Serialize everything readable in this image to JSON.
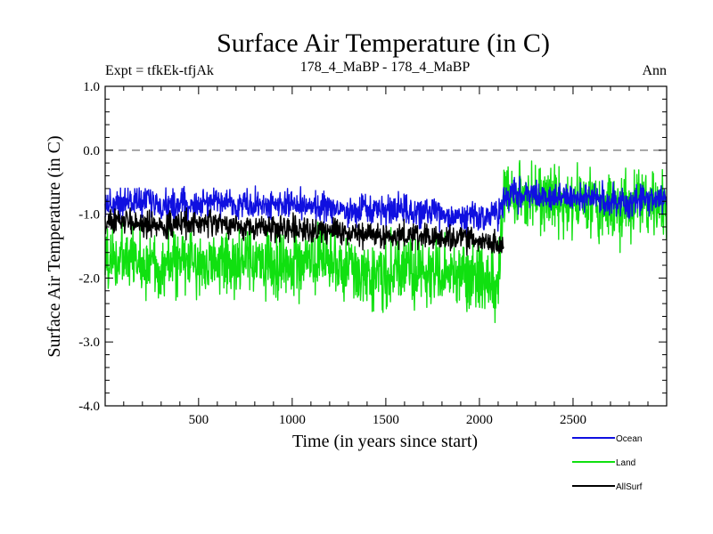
{
  "chart_data": {
    "type": "line",
    "title": "Surface Air Temperature (in C)",
    "subtitle_left": "Expt = tfkEk-tfjAk",
    "subtitle_center": "178_4_MaBP - 178_4_MaBP",
    "subtitle_right": "Ann",
    "xlabel": "Time (in years since start)",
    "ylabel": "Surface Air Temperature (in C)",
    "xlim": [
      1,
      3000
    ],
    "ylim": [
      -4.0,
      1.0
    ],
    "xticks": [
      500,
      1000,
      1500,
      2000,
      2500
    ],
    "xtick_labels": [
      "500",
      "1000",
      "1500",
      "2000",
      "2500"
    ],
    "yticks": [
      1.0,
      0.0,
      -1.0,
      -2.0,
      -3.0,
      -4.0
    ],
    "ytick_labels": [
      "1.0",
      "0.0",
      "-1.0",
      "-2.0",
      "-3.0",
      "-4.0"
    ],
    "reference_line": {
      "y": 0.0,
      "style": "dashed",
      "color": "#808080"
    },
    "legend_placement": "bottom-right",
    "series": [
      {
        "name": "Ocean",
        "color": "#1010e0",
        "x": [
          1,
          100,
          200,
          300,
          400,
          500,
          600,
          700,
          800,
          900,
          1000,
          1100,
          1200,
          1300,
          1400,
          1500,
          1600,
          1700,
          1800,
          1900,
          2000,
          2100,
          2130,
          2200,
          2300,
          2400,
          2500,
          2600,
          2700,
          2800,
          2900,
          3000
        ],
        "mean": [
          -0.85,
          -0.8,
          -0.8,
          -0.85,
          -0.85,
          -0.85,
          -0.8,
          -0.85,
          -0.85,
          -0.85,
          -0.85,
          -0.9,
          -0.9,
          -0.95,
          -0.95,
          -0.95,
          -0.95,
          -1.0,
          -1.0,
          -1.05,
          -1.05,
          -1.05,
          -0.7,
          -0.7,
          -0.7,
          -0.75,
          -0.75,
          -0.75,
          -0.8,
          -0.85,
          -0.75,
          -0.75
        ],
        "spread": 0.14
      },
      {
        "name": "Land",
        "color": "#10e010",
        "x": [
          1,
          100,
          200,
          300,
          400,
          500,
          600,
          700,
          800,
          900,
          1000,
          1100,
          1200,
          1300,
          1400,
          1500,
          1600,
          1700,
          1800,
          1900,
          2000,
          2100,
          2130,
          2200,
          2300,
          2400,
          2500,
          2600,
          2700,
          2800,
          2900,
          3000
        ],
        "mean": [
          -1.7,
          -1.7,
          -1.75,
          -1.8,
          -1.75,
          -1.75,
          -1.75,
          -1.8,
          -1.75,
          -1.8,
          -1.75,
          -1.75,
          -1.8,
          -1.85,
          -1.9,
          -1.95,
          -1.85,
          -1.95,
          -1.95,
          -1.9,
          -1.95,
          -2.05,
          -0.85,
          -0.75,
          -0.7,
          -0.8,
          -0.85,
          -0.8,
          -0.85,
          -0.95,
          -0.8,
          -0.9
        ],
        "spread": 0.32
      },
      {
        "name": "AllSurf",
        "color": "#000000",
        "x": [
          1,
          100,
          200,
          300,
          400,
          500,
          600,
          700,
          800,
          900,
          1000,
          1100,
          1200,
          1300,
          1400,
          1500,
          1600,
          1700,
          1800,
          1900,
          2000,
          2100,
          2130
        ],
        "mean": [
          -1.15,
          -1.1,
          -1.15,
          -1.2,
          -1.15,
          -1.15,
          -1.15,
          -1.2,
          -1.2,
          -1.2,
          -1.2,
          -1.25,
          -1.25,
          -1.3,
          -1.3,
          -1.35,
          -1.35,
          -1.35,
          -1.4,
          -1.4,
          -1.4,
          -1.45,
          -1.45
        ],
        "spread": 0.12
      }
    ]
  }
}
